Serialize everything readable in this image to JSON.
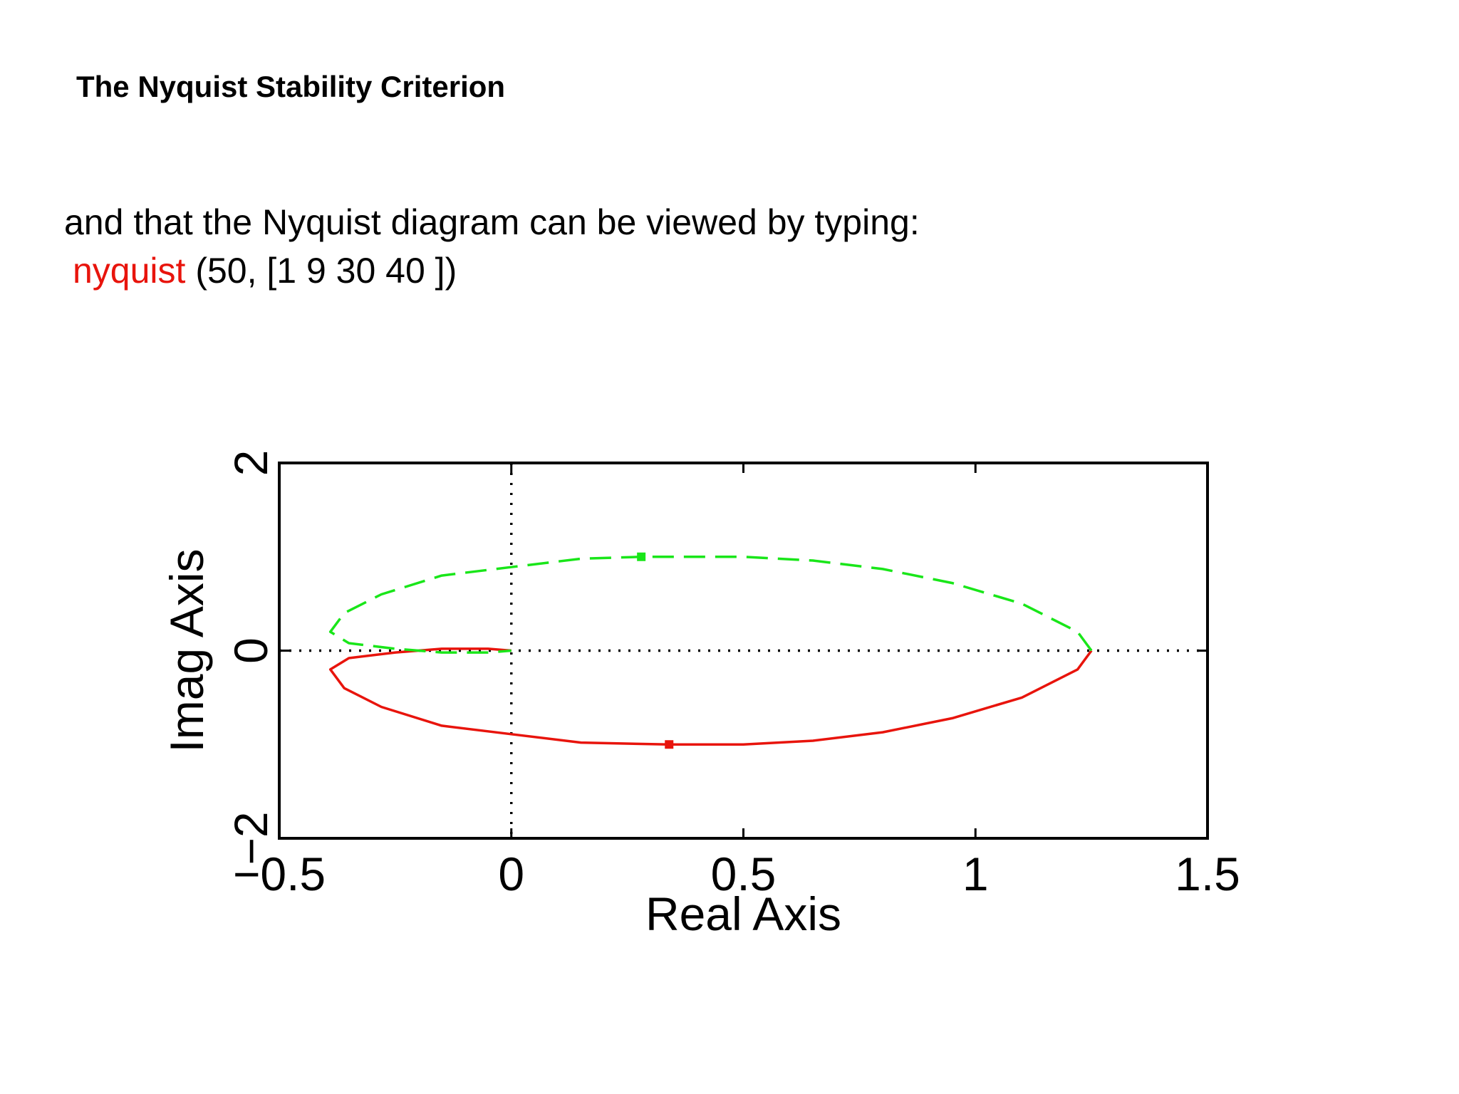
{
  "slide": {
    "title": "The Nyquist Stability Criterion",
    "intro": "and that the Nyquist diagram can be viewed by typing:",
    "command_name": "nyquist",
    "command_args": " (50, [1 9 30 40 ])"
  },
  "colors": {
    "command": "#e8140c",
    "positive_freq": "#e8140c",
    "negative_freq": "#19e619",
    "frame": "#000000"
  },
  "chart_data": {
    "type": "line",
    "title": "",
    "xlabel": "Real Axis",
    "ylabel": "Imag Axis",
    "xlim": [
      -0.5,
      1.5
    ],
    "ylim": [
      -2,
      2
    ],
    "xticks": [
      -0.5,
      0,
      0.5,
      1,
      1.5
    ],
    "xtick_labels": [
      "−0.5",
      "0",
      "0.5",
      "1",
      "1.5"
    ],
    "yticks": [
      -2,
      0,
      2
    ],
    "ytick_labels": [
      "−2",
      "0",
      "2"
    ],
    "grid": "dotted lines at x=0 and y=0",
    "series": [
      {
        "style": "solid",
        "color": "#e8140c",
        "x": [
          1.25,
          1.22,
          1.1,
          0.95,
          0.8,
          0.65,
          0.5,
          0.34,
          0.15,
          0.0,
          -0.15,
          -0.28,
          -0.36,
          -0.39,
          -0.35,
          -0.25,
          -0.15,
          -0.05,
          0.0
        ],
        "y": [
          0.0,
          -0.2,
          -0.5,
          -0.72,
          -0.87,
          -0.96,
          -1.0,
          -1.0,
          -0.98,
          -0.89,
          -0.8,
          -0.6,
          -0.4,
          -0.2,
          -0.08,
          -0.02,
          0.02,
          0.02,
          0.0
        ],
        "marker": {
          "x": 0.34,
          "y": -1.0
        }
      },
      {
        "style": "dashed",
        "color": "#19e619",
        "x": [
          1.25,
          1.22,
          1.1,
          0.95,
          0.8,
          0.65,
          0.5,
          0.28,
          0.15,
          0.0,
          -0.15,
          -0.28,
          -0.36,
          -0.39,
          -0.35,
          -0.25,
          -0.15,
          -0.05,
          0.0
        ],
        "y": [
          0.0,
          0.2,
          0.5,
          0.72,
          0.87,
          0.96,
          1.0,
          1.0,
          0.98,
          0.89,
          0.8,
          0.6,
          0.4,
          0.2,
          0.08,
          0.02,
          -0.02,
          -0.02,
          0.0
        ],
        "marker": {
          "x": 0.28,
          "y": 1.0
        }
      }
    ]
  }
}
